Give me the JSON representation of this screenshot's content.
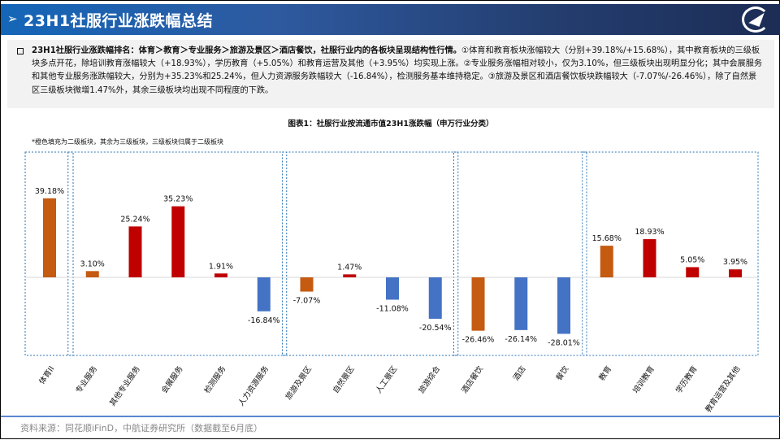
{
  "header": {
    "title": "23H1社服行业涨跌幅总结",
    "logo_text": "AVIC"
  },
  "summary": {
    "lead": "23H1社服行业涨跌幅排名：体育＞教育＞专业服务＞旅游及景区＞酒店餐饮，社服行业内的各板块呈现结构性行情。",
    "body": "①体育和教育板块涨幅较大（分别+39.18%/+15.68%），其中教育板块的三级板块多点开花，除培训教育涨幅较大（+18.93%），学历教育（+5.05%）和教育运营及其他（+3.95%）均实现上涨。②专业服务涨幅相对较小，仅为3.10%，但三级板块出现明显分化；其中会展服务和其他专业服务涨跌幅较大，分别为+35.23%和25.24%，但人力资源服务跌幅较大（-16.84%），检测服务基本维持稳定。③旅游及景区和酒店餐饮板块跌幅较大（-7.07%/-26.46%），除了自然景区三级板块微增1.47%外，其余三级板块均出现不同程度的下跌。"
  },
  "chart_data": {
    "type": "bar",
    "title": "图表1：社服行业按流通市值23H1涨跌幅（申万行业分类）",
    "note": "*橙色填充为二级板块，其余为三级板块，三级板块归属于二级板块",
    "categories": [
      "体育II",
      "专业服务",
      "其他专业服务",
      "会展服务",
      "检测服务",
      "人力资源服务",
      "旅游及景区",
      "自然景区",
      "人工景区",
      "旅游综合",
      "酒店餐饮",
      "酒店",
      "餐饮",
      "教育",
      "培训教育",
      "学历教育",
      "教育运营及其他"
    ],
    "values": [
      39.18,
      3.1,
      25.24,
      35.23,
      1.91,
      -16.84,
      -7.07,
      1.47,
      -11.08,
      -20.54,
      -26.46,
      -26.14,
      -28.01,
      15.68,
      18.93,
      5.05,
      3.95
    ],
    "labels": [
      "39.18%",
      "3.10%",
      "25.24%",
      "35.23%",
      "1.91%",
      "-16.84%",
      "-7.07%",
      "1.47%",
      "-11.08%",
      "-20.54%",
      "-26.46%",
      "-26.14%",
      "-28.01%",
      "15.68%",
      "18.93%",
      "5.05%",
      "3.95%"
    ],
    "level": [
      2,
      2,
      3,
      3,
      3,
      3,
      2,
      3,
      3,
      3,
      2,
      3,
      3,
      2,
      3,
      3,
      3
    ],
    "groups": [
      [
        0,
        0
      ],
      [
        1,
        5
      ],
      [
        6,
        9
      ],
      [
        10,
        12
      ],
      [
        13,
        16
      ]
    ],
    "unit": "%",
    "colors": {
      "level2": "#C55A11",
      "positive": "#C00000",
      "negative": "#4472C4",
      "group_border": "#2E75B6"
    }
  },
  "footer": {
    "source": "资料来源：同花顺iFinD，中航证券研究所（数据截至6月底）"
  }
}
